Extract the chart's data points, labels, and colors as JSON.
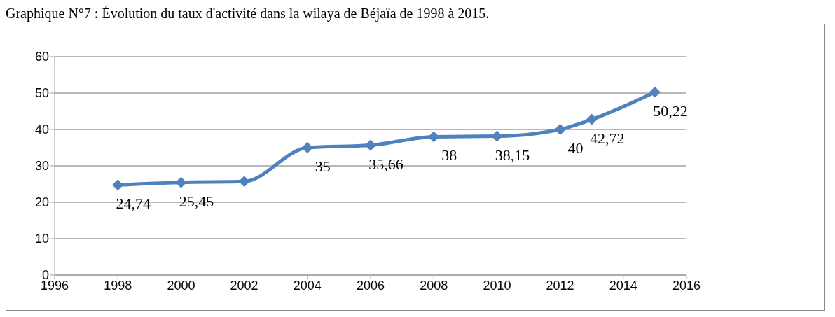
{
  "chart_data": {
    "type": "line",
    "title": "Graphique N°7 : Évolution du taux d'activité dans la wilaya de Béjaïa de 1998 à 2015.",
    "x": [
      1998,
      2000,
      2002,
      2004,
      2006,
      2008,
      2010,
      2012,
      2013,
      2015
    ],
    "series": [
      {
        "color": "#4f81bd",
        "values": [
          24.74,
          25.45,
          25.7,
          35,
          35.66,
          38,
          38.15,
          40,
          42.72,
          50.22
        ],
        "value_labels": [
          "24,74",
          "25,45",
          null,
          "35",
          "35,66",
          "38",
          "38,15",
          "40",
          "42,72",
          "50,22"
        ]
      }
    ],
    "xlim": [
      1996,
      2016
    ],
    "xticks": [
      1996,
      1998,
      2000,
      2002,
      2004,
      2006,
      2008,
      2010,
      2012,
      2014,
      2016
    ],
    "ylim": [
      0,
      60
    ],
    "yticks": [
      0,
      10,
      20,
      30,
      40,
      50,
      60
    ],
    "grid": "y",
    "marker": "diamond",
    "line_style": "solid"
  }
}
